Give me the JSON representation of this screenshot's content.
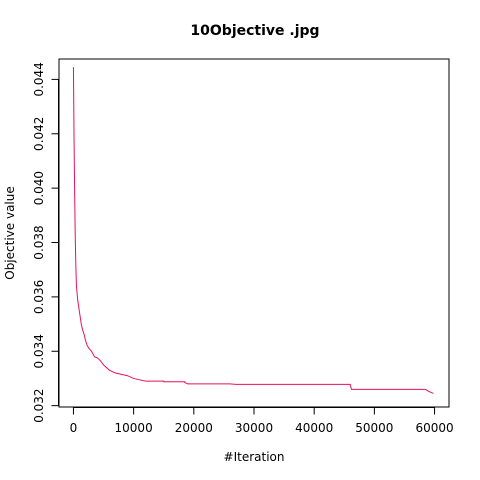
{
  "chart_data": {
    "type": "line",
    "title": "10Objective .jpg",
    "xlabel": "#Iteration",
    "ylabel": "Objective value",
    "xlim": [
      -2400,
      62400
    ],
    "ylim": [
      0.03195,
      0.04475
    ],
    "xticks": [
      0,
      10000,
      20000,
      30000,
      40000,
      50000,
      60000
    ],
    "yticks": [
      0.032,
      0.034,
      0.036,
      0.038,
      0.04,
      0.042,
      0.044
    ],
    "grid": false,
    "legend": "none",
    "line_color": "#e8115b",
    "series": [
      {
        "x": [
          0,
          100,
          200,
          300,
          400,
          500,
          700,
          900,
          1100,
          1300,
          1500,
          1800,
          2000,
          2300,
          2600,
          3000,
          3500,
          4000,
          4500,
          5000,
          5500,
          6000,
          7000,
          8000,
          9000,
          10000,
          11000,
          12000,
          15000,
          18500,
          19000,
          26000,
          27000,
          46000,
          46200,
          58500,
          58800,
          59800
        ],
        "y": [
          0.04445,
          0.0418,
          0.0398,
          0.0382,
          0.0371,
          0.0364,
          0.0359,
          0.0356,
          0.0353,
          0.035,
          0.0348,
          0.0346,
          0.0344,
          0.0342,
          0.0341,
          0.034,
          0.0338,
          0.03375,
          0.03365,
          0.0335,
          0.0334,
          0.0333,
          0.0332,
          0.03315,
          0.0331,
          0.033,
          0.03295,
          0.0329,
          0.03288,
          0.03285,
          0.0328,
          0.0328,
          0.03278,
          0.03275,
          0.0326,
          0.0326,
          0.03255,
          0.03245
        ]
      }
    ]
  }
}
